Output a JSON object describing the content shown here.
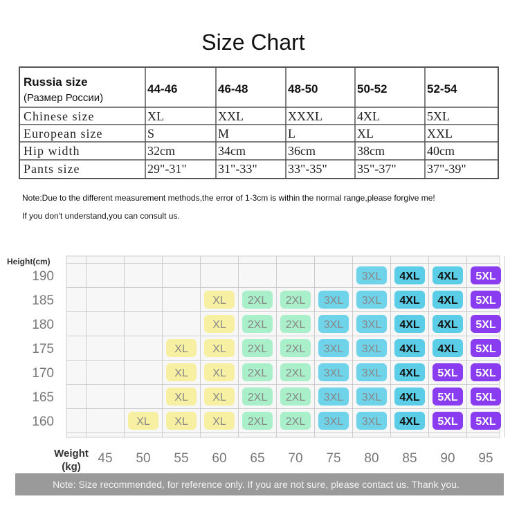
{
  "title": "Size Chart",
  "size_table": {
    "header": {
      "label": "Russia size",
      "sublabel": "(Размер России)",
      "sizes": [
        "44-46",
        "46-48",
        "48-50",
        "50-52",
        "52-54"
      ]
    },
    "rows": [
      {
        "label": "Chinese size",
        "values": [
          "XL",
          "XXL",
          "XXXL",
          "4XL",
          "5XL"
        ]
      },
      {
        "label": "European size",
        "values": [
          "S",
          "M",
          "L",
          "XL",
          "XXL"
        ]
      },
      {
        "label": "Hip width",
        "values": [
          "32cm",
          "34cm",
          "36cm",
          "38cm",
          "40cm"
        ]
      },
      {
        "label": "Pants size",
        "values": [
          "29\"-31\"",
          "31\"-33\"",
          "33\"-35\"",
          "35\"-37\"",
          "37\"-39\""
        ]
      }
    ]
  },
  "notes": [
    "Note:Due to the different measurement methods,the error of 1-3cm is within the normal range,please forgive me!",
    "If you don't understand,you can consult us."
  ],
  "size_grid": {
    "y_label": "Height(cm)",
    "x_label": "Weight",
    "x_unit": "(kg)",
    "heights": [
      190,
      185,
      180,
      175,
      170,
      165,
      160
    ],
    "weights": [
      45,
      50,
      55,
      60,
      65,
      70,
      75,
      80,
      85,
      90,
      95
    ],
    "cells": [
      [
        null,
        null,
        null,
        null,
        null,
        null,
        null,
        "3XL",
        "4XL",
        "4XL",
        "5XL"
      ],
      [
        null,
        null,
        null,
        "XL",
        "2XL",
        "2XL",
        "3XL",
        "3XL",
        "4XL",
        "4XL",
        "5XL"
      ],
      [
        null,
        null,
        null,
        "XL",
        "2XL",
        "2XL",
        "3XL",
        "3XL",
        "4XL",
        "4XL",
        "5XL"
      ],
      [
        null,
        null,
        "XL",
        "XL",
        "2XL",
        "2XL",
        "3XL",
        "3XL",
        "4XL",
        "4XL",
        "5XL"
      ],
      [
        null,
        null,
        "XL",
        "XL",
        "2XL",
        "2XL",
        "3XL",
        "3XL",
        "4XL",
        "5XL",
        "5XL"
      ],
      [
        null,
        null,
        "XL",
        "XL",
        "2XL",
        "2XL",
        "3XL",
        "3XL",
        "4XL",
        "5XL",
        "5XL"
      ],
      [
        null,
        "XL",
        "XL",
        "XL",
        "2XL",
        "2XL",
        "3XL",
        "3XL",
        "4XL",
        "5XL",
        "5XL"
      ]
    ],
    "colors": {
      "XL": "#f7f0a3",
      "2XL": "#a9efc9",
      "3XL": "#6fd3ea",
      "4XL": "#5ccde6",
      "5XL": "#8a3df0"
    },
    "text_colors": {
      "XL": "#888888",
      "2XL": "#888888",
      "3XL": "#888888",
      "4XL": "#111111",
      "5XL": "#ffffff"
    }
  },
  "footer": "Note: Size recommended, for reference only. If you are not sure, please contact us. Thank you."
}
